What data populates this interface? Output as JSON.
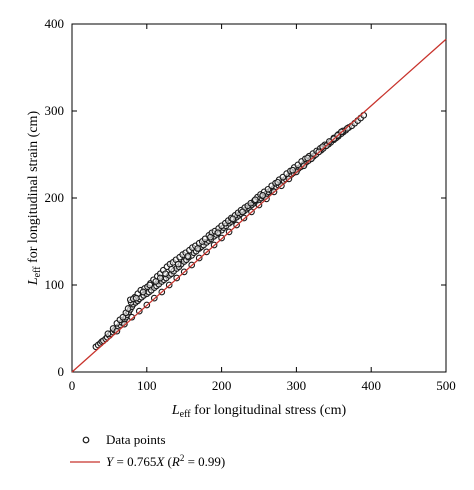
{
  "chart_data": {
    "type": "scatter",
    "xlabel": {
      "prefix": "L",
      "subscript": "eff",
      "rest": " for longitudinal stress (cm)"
    },
    "ylabel": {
      "prefix": "L",
      "subscript": "eff",
      "rest": " for longitudinal strain (cm)"
    },
    "xlim": [
      0,
      500
    ],
    "ylim": [
      0,
      400
    ],
    "xticks": [
      0,
      100,
      200,
      300,
      400,
      500
    ],
    "yticks": [
      0,
      100,
      200,
      300,
      400
    ],
    "xtick_labels": [
      "0",
      "100",
      "200",
      "300",
      "400",
      "500"
    ],
    "ytick_labels": [
      "0",
      "100",
      "200",
      "300",
      "400"
    ],
    "grid": false,
    "legend_placement": "bottom",
    "series": [
      {
        "name": "Data points",
        "kind": "scatter",
        "marker": "open-circle",
        "color": "#1a1a1a",
        "points": [
          [
            32,
            29
          ],
          [
            35,
            31
          ],
          [
            38,
            33
          ],
          [
            40,
            35
          ],
          [
            42,
            36
          ],
          [
            45,
            38
          ],
          [
            47,
            40
          ],
          [
            50,
            42
          ],
          [
            52,
            44
          ],
          [
            55,
            46
          ],
          [
            57,
            48
          ],
          [
            60,
            50
          ],
          [
            62,
            52
          ],
          [
            65,
            54
          ],
          [
            67,
            57
          ],
          [
            70,
            60
          ],
          [
            72,
            63
          ],
          [
            74,
            66
          ],
          [
            76,
            69
          ],
          [
            78,
            72
          ],
          [
            80,
            75
          ],
          [
            82,
            78
          ],
          [
            85,
            80
          ],
          [
            88,
            82
          ],
          [
            90,
            84
          ],
          [
            93,
            86
          ],
          [
            96,
            88
          ],
          [
            100,
            90
          ],
          [
            103,
            92
          ],
          [
            106,
            94
          ],
          [
            110,
            97
          ],
          [
            113,
            99
          ],
          [
            116,
            101
          ],
          [
            120,
            104
          ],
          [
            123,
            106
          ],
          [
            126,
            108
          ],
          [
            130,
            111
          ],
          [
            133,
            113
          ],
          [
            136,
            116
          ],
          [
            140,
            119
          ],
          [
            143,
            121
          ],
          [
            146,
            124
          ],
          [
            150,
            127
          ],
          [
            153,
            129
          ],
          [
            156,
            132
          ],
          [
            160,
            134
          ],
          [
            163,
            137
          ],
          [
            166,
            139
          ],
          [
            170,
            142
          ],
          [
            173,
            144
          ],
          [
            176,
            146
          ],
          [
            180,
            149
          ],
          [
            183,
            151
          ],
          [
            186,
            153
          ],
          [
            190,
            156
          ],
          [
            193,
            158
          ],
          [
            196,
            161
          ],
          [
            200,
            163
          ],
          [
            203,
            166
          ],
          [
            206,
            168
          ],
          [
            210,
            171
          ],
          [
            213,
            173
          ],
          [
            216,
            175
          ],
          [
            220,
            178
          ],
          [
            223,
            180
          ],
          [
            226,
            182
          ],
          [
            230,
            185
          ],
          [
            233,
            187
          ],
          [
            236,
            189
          ],
          [
            240,
            192
          ],
          [
            243,
            194
          ],
          [
            246,
            196
          ],
          [
            250,
            198
          ],
          [
            253,
            200
          ],
          [
            256,
            202
          ],
          [
            260,
            205
          ],
          [
            263,
            207
          ],
          [
            266,
            209
          ],
          [
            270,
            211
          ],
          [
            273,
            213
          ],
          [
            276,
            215
          ],
          [
            280,
            218
          ],
          [
            283,
            220
          ],
          [
            286,
            222
          ],
          [
            290,
            225
          ],
          [
            293,
            227
          ],
          [
            296,
            229
          ],
          [
            300,
            232
          ],
          [
            303,
            234
          ],
          [
            306,
            236
          ],
          [
            310,
            239
          ],
          [
            313,
            241
          ],
          [
            316,
            243
          ],
          [
            320,
            246
          ],
          [
            323,
            248
          ],
          [
            326,
            250
          ],
          [
            330,
            253
          ],
          [
            333,
            255
          ],
          [
            336,
            257
          ],
          [
            340,
            260
          ],
          [
            343,
            262
          ],
          [
            346,
            264
          ],
          [
            350,
            267
          ],
          [
            353,
            269
          ],
          [
            356,
            271
          ],
          [
            360,
            274
          ],
          [
            363,
            276
          ],
          [
            366,
            278
          ],
          [
            370,
            281
          ],
          [
            374,
            283
          ],
          [
            378,
            286
          ],
          [
            382,
            289
          ],
          [
            386,
            292
          ],
          [
            390,
            295
          ],
          [
            48,
            44
          ],
          [
            55,
            50
          ],
          [
            60,
            56
          ],
          [
            64,
            60
          ],
          [
            68,
            63
          ],
          [
            72,
            68
          ],
          [
            75,
            73
          ],
          [
            79,
            80
          ],
          [
            84,
            86
          ],
          [
            88,
            90
          ],
          [
            92,
            94
          ],
          [
            97,
            96
          ],
          [
            101,
            98
          ],
          [
            105,
            102
          ],
          [
            109,
            106
          ],
          [
            114,
            110
          ],
          [
            118,
            113
          ],
          [
            122,
            117
          ],
          [
            127,
            121
          ],
          [
            131,
            124
          ],
          [
            135,
            126
          ],
          [
            139,
            129
          ],
          [
            144,
            132
          ],
          [
            148,
            135
          ],
          [
            152,
            137
          ],
          [
            157,
            140
          ],
          [
            161,
            143
          ],
          [
            165,
            145
          ],
          [
            170,
            148
          ],
          [
            174,
            150
          ],
          [
            178,
            153
          ],
          [
            183,
            157
          ],
          [
            187,
            160
          ],
          [
            191,
            162
          ],
          [
            196,
            165
          ],
          [
            200,
            168
          ],
          [
            205,
            171
          ],
          [
            209,
            174
          ],
          [
            213,
            177
          ],
          [
            218,
            180
          ],
          [
            222,
            183
          ],
          [
            226,
            186
          ],
          [
            231,
            189
          ],
          [
            235,
            191
          ],
          [
            239,
            194
          ],
          [
            244,
            197
          ],
          [
            248,
            201
          ],
          [
            252,
            204
          ],
          [
            257,
            207
          ],
          [
            262,
            210
          ],
          [
            267,
            214
          ],
          [
            272,
            217
          ],
          [
            277,
            221
          ],
          [
            282,
            224
          ],
          [
            287,
            228
          ],
          [
            292,
            231
          ],
          [
            297,
            235
          ],
          [
            302,
            238
          ],
          [
            307,
            242
          ],
          [
            312,
            245
          ],
          [
            317,
            248
          ],
          [
            322,
            251
          ],
          [
            327,
            254
          ],
          [
            332,
            257
          ],
          [
            338,
            261
          ],
          [
            344,
            265
          ],
          [
            350,
            269
          ],
          [
            356,
            273
          ],
          [
            362,
            277
          ],
          [
            368,
            280
          ],
          [
            60,
            47
          ],
          [
            70,
            55
          ],
          [
            80,
            63
          ],
          [
            90,
            70
          ],
          [
            100,
            77
          ],
          [
            110,
            85
          ],
          [
            120,
            92
          ],
          [
            130,
            100
          ],
          [
            140,
            108
          ],
          [
            150,
            115
          ],
          [
            160,
            123
          ],
          [
            170,
            131
          ],
          [
            180,
            138
          ],
          [
            190,
            146
          ],
          [
            200,
            154
          ],
          [
            210,
            161
          ],
          [
            220,
            169
          ],
          [
            230,
            177
          ],
          [
            240,
            184
          ],
          [
            250,
            192
          ],
          [
            260,
            199
          ],
          [
            270,
            207
          ],
          [
            280,
            214
          ],
          [
            290,
            222
          ],
          [
            300,
            230
          ],
          [
            310,
            237
          ],
          [
            320,
            245
          ],
          [
            330,
            253
          ],
          [
            340,
            260
          ],
          [
            350,
            268
          ],
          [
            360,
            276
          ],
          [
            78,
            83
          ],
          [
            82,
            84
          ],
          [
            86,
            85
          ],
          [
            95,
            92
          ],
          [
            104,
            100
          ],
          [
            112,
            104
          ],
          [
            118,
            108
          ],
          [
            125,
            113
          ],
          [
            133,
            118
          ],
          [
            142,
            124
          ],
          [
            155,
            133
          ],
          [
            168,
            142
          ],
          [
            185,
            155
          ],
          [
            195,
            160
          ],
          [
            215,
            176
          ],
          [
            228,
            184
          ],
          [
            245,
            198
          ],
          [
            255,
            203
          ],
          [
            275,
            218
          ],
          [
            295,
            232
          ],
          [
            315,
            246
          ],
          [
            335,
            259
          ],
          [
            355,
            272
          ]
        ]
      },
      {
        "name": "Y = 0.765X (R² = 0.99)",
        "kind": "line",
        "color": "#c8332c",
        "slope": 0.765,
        "x": [
          0,
          500
        ],
        "y": [
          0,
          382.5
        ]
      }
    ],
    "legend": [
      {
        "marker": "open-circle",
        "text": "Data points"
      },
      {
        "marker": "line",
        "text_parts": {
          "y": "Y",
          "eq": " = 0.765",
          "x": "X",
          "open": " (",
          "r": "R",
          "sup": "2",
          "close": " = 0.99)"
        }
      }
    ]
  }
}
